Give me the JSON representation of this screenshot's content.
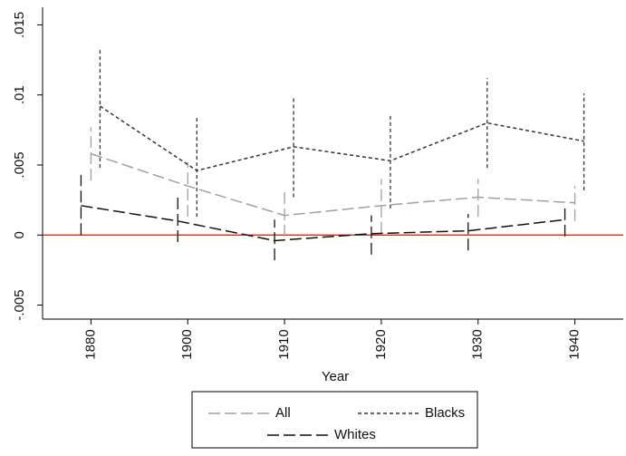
{
  "chart_data": {
    "type": "line",
    "x_label": "Year",
    "categories": [
      "1880",
      "1900",
      "1910",
      "1920",
      "1930",
      "1940"
    ],
    "ylim": [
      -0.006,
      0.016
    ],
    "yticks": [
      {
        "value": -0.005,
        "label": "-.005"
      },
      0,
      {
        "value": 0.005,
        "label": ".005"
      },
      {
        "value": 0.01,
        "label": ".01"
      },
      {
        "value": 0.015,
        "label": ".015"
      }
    ],
    "reference_line": {
      "value": 0,
      "color": "#ff0000"
    },
    "series": [
      {
        "name": "All",
        "color": "#a0a0a0",
        "style": "long-dash",
        "values": [
          0.0058,
          0.0035,
          0.0014,
          0.0021,
          0.0027,
          0.0023
        ],
        "lower": [
          0.0039,
          0.0013,
          -0.0001,
          0.0001,
          0.0013,
          0.001
        ],
        "upper": [
          0.0077,
          0.0052,
          0.0031,
          0.004,
          0.004,
          0.0035
        ]
      },
      {
        "name": "Blacks",
        "color": "#333333",
        "style": "short-dash",
        "values": [
          0.0092,
          0.0046,
          0.0063,
          0.0053,
          0.008,
          0.0067
        ],
        "lower": [
          0.0048,
          0.0013,
          0.0027,
          0.0019,
          0.0048,
          0.0032
        ],
        "upper": [
          0.0132,
          0.0084,
          0.0098,
          0.0085,
          0.0112,
          0.0101
        ]
      },
      {
        "name": "Whites",
        "color": "#111111",
        "style": "long-dash",
        "values": [
          0.0021,
          0.001,
          -0.0004,
          0.0001,
          0.0003,
          0.0011
        ],
        "lower": [
          0.0,
          -0.0005,
          -0.0018,
          -0.0014,
          -0.0011,
          -0.0001
        ],
        "upper": [
          0.0043,
          0.0027,
          0.0011,
          0.0014,
          0.0015,
          0.0022
        ]
      }
    ]
  }
}
